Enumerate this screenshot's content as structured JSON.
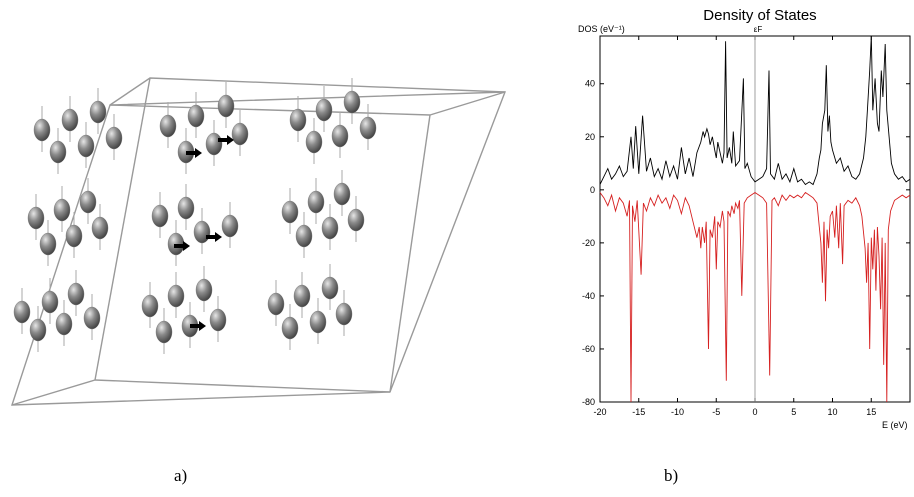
{
  "captions": {
    "a": "a)",
    "b": "b)"
  },
  "structure": {
    "atom_color": "#6f6f6f",
    "arrow_color": "#000000",
    "cell_color": "#9a9a9a"
  },
  "chart_data": {
    "type": "line",
    "title": "Density of States",
    "ylabel": "DOS (eV⁻¹)",
    "xlabel": "E (eV)",
    "fermi_label": "εF",
    "xlim": [
      -20,
      20
    ],
    "ylim": [
      -80,
      58
    ],
    "xticks": [
      -20,
      -15,
      -10,
      -5,
      0,
      5,
      10,
      15
    ],
    "yticks": [
      -80,
      -60,
      -40,
      -20,
      0,
      20,
      40
    ],
    "fermi_energy": 0,
    "series": [
      {
        "name": "",
        "color": "#000000",
        "points": [
          [
            -20,
            2
          ],
          [
            -19.5,
            5
          ],
          [
            -19,
            8
          ],
          [
            -18.5,
            4
          ],
          [
            -18,
            6
          ],
          [
            -17.5,
            9
          ],
          [
            -17,
            5
          ],
          [
            -16.5,
            7
          ],
          [
            -16,
            20
          ],
          [
            -15.7,
            8
          ],
          [
            -15.4,
            24
          ],
          [
            -15,
            6
          ],
          [
            -14.5,
            28
          ],
          [
            -14,
            7
          ],
          [
            -13.5,
            12
          ],
          [
            -13,
            5
          ],
          [
            -12.5,
            8
          ],
          [
            -12,
            4
          ],
          [
            -11.5,
            11
          ],
          [
            -11,
            5
          ],
          [
            -10.5,
            9
          ],
          [
            -10,
            4
          ],
          [
            -9.5,
            16
          ],
          [
            -9,
            6
          ],
          [
            -8.5,
            12
          ],
          [
            -8,
            5
          ],
          [
            -7.5,
            14
          ],
          [
            -7,
            18
          ],
          [
            -6.7,
            22
          ],
          [
            -6.5,
            20
          ],
          [
            -6.2,
            23
          ],
          [
            -6,
            21
          ],
          [
            -5.8,
            17
          ],
          [
            -5.5,
            20
          ],
          [
            -5.2,
            15
          ],
          [
            -5,
            12
          ],
          [
            -4.8,
            18
          ],
          [
            -4.5,
            14
          ],
          [
            -4.2,
            10
          ],
          [
            -4,
            14
          ],
          [
            -3.8,
            56
          ],
          [
            -3.6,
            12
          ],
          [
            -3.3,
            16
          ],
          [
            -3,
            10
          ],
          [
            -2.8,
            22
          ],
          [
            -2.5,
            9
          ],
          [
            -2,
            11
          ],
          [
            -1.5,
            42
          ],
          [
            -1.3,
            8
          ],
          [
            -1,
            10
          ],
          [
            -0.5,
            5
          ],
          [
            0,
            3
          ],
          [
            0.5,
            4
          ],
          [
            1,
            5
          ],
          [
            1.5,
            8
          ],
          [
            1.8,
            45
          ],
          [
            2,
            6
          ],
          [
            2.5,
            4
          ],
          [
            3,
            10
          ],
          [
            3.5,
            4
          ],
          [
            4,
            6
          ],
          [
            4.5,
            3
          ],
          [
            5,
            8
          ],
          [
            5.5,
            3
          ],
          [
            6,
            4
          ],
          [
            6.5,
            2
          ],
          [
            7,
            3
          ],
          [
            7.5,
            2
          ],
          [
            8,
            6
          ],
          [
            8.3,
            12
          ],
          [
            8.5,
            15
          ],
          [
            8.7,
            25
          ],
          [
            9,
            30
          ],
          [
            9.2,
            47
          ],
          [
            9.4,
            22
          ],
          [
            9.6,
            28
          ],
          [
            9.8,
            18
          ],
          [
            10,
            15
          ],
          [
            10.5,
            10
          ],
          [
            11,
            12
          ],
          [
            11.5,
            7
          ],
          [
            12,
            9
          ],
          [
            12.5,
            5
          ],
          [
            13,
            4
          ],
          [
            13.5,
            6
          ],
          [
            14,
            12
          ],
          [
            14.3,
            20
          ],
          [
            14.5,
            30
          ],
          [
            14.8,
            45
          ],
          [
            15,
            58
          ],
          [
            15.2,
            30
          ],
          [
            15.5,
            42
          ],
          [
            15.8,
            25
          ],
          [
            16,
            22
          ],
          [
            16.3,
            45
          ],
          [
            16.5,
            35
          ],
          [
            16.8,
            55
          ],
          [
            17,
            30
          ],
          [
            17.3,
            20
          ],
          [
            17.6,
            10
          ],
          [
            18,
            6
          ],
          [
            18.5,
            4
          ],
          [
            19,
            5
          ],
          [
            19.5,
            3
          ],
          [
            20,
            4
          ]
        ]
      },
      {
        "name": "",
        "color": "#d62020",
        "points": [
          [
            -20,
            -1
          ],
          [
            -19.5,
            -3
          ],
          [
            -19,
            -6
          ],
          [
            -18.5,
            -2
          ],
          [
            -18,
            -8
          ],
          [
            -17.5,
            -3
          ],
          [
            -17,
            -5
          ],
          [
            -16.5,
            -10
          ],
          [
            -16.2,
            -4
          ],
          [
            -16,
            -80
          ],
          [
            -15.8,
            -6
          ],
          [
            -15.5,
            -12
          ],
          [
            -15.2,
            -4
          ],
          [
            -14.7,
            -32
          ],
          [
            -14.4,
            -5
          ],
          [
            -14,
            -8
          ],
          [
            -13.5,
            -3
          ],
          [
            -13,
            -6
          ],
          [
            -12.5,
            -2
          ],
          [
            -12,
            -5
          ],
          [
            -11.5,
            -3
          ],
          [
            -11,
            -7
          ],
          [
            -10.5,
            -2
          ],
          [
            -10,
            -4
          ],
          [
            -9.5,
            -9
          ],
          [
            -9,
            -3
          ],
          [
            -8.5,
            -6
          ],
          [
            -8,
            -12
          ],
          [
            -7.5,
            -18
          ],
          [
            -7.2,
            -14
          ],
          [
            -7,
            -22
          ],
          [
            -6.8,
            -14
          ],
          [
            -6.5,
            -20
          ],
          [
            -6.3,
            -12
          ],
          [
            -6,
            -60
          ],
          [
            -5.8,
            -15
          ],
          [
            -5.5,
            -18
          ],
          [
            -5.2,
            -10
          ],
          [
            -5,
            -30
          ],
          [
            -4.8,
            -12
          ],
          [
            -4.5,
            -14
          ],
          [
            -4.2,
            -8
          ],
          [
            -4,
            -12
          ],
          [
            -3.7,
            -72
          ],
          [
            -3.5,
            -8
          ],
          [
            -3.2,
            -10
          ],
          [
            -3,
            -6
          ],
          [
            -2.7,
            -9
          ],
          [
            -2.5,
            -5
          ],
          [
            -2.2,
            -7
          ],
          [
            -2,
            -4
          ],
          [
            -1.7,
            -40
          ],
          [
            -1.4,
            -5
          ],
          [
            -1,
            -3
          ],
          [
            -0.5,
            -2
          ],
          [
            0,
            -1
          ],
          [
            0.5,
            -2
          ],
          [
            1,
            -3
          ],
          [
            1.5,
            -5
          ],
          [
            1.9,
            -70
          ],
          [
            2.2,
            -4
          ],
          [
            2.5,
            -3
          ],
          [
            3,
            -6
          ],
          [
            3.5,
            -2
          ],
          [
            4,
            -4
          ],
          [
            4.5,
            -2
          ],
          [
            5,
            -3
          ],
          [
            5.5,
            -2
          ],
          [
            6,
            -3
          ],
          [
            6.5,
            -1
          ],
          [
            7,
            -2
          ],
          [
            7.5,
            -3
          ],
          [
            8,
            -5
          ],
          [
            8.3,
            -14
          ],
          [
            8.5,
            -20
          ],
          [
            8.7,
            -35
          ],
          [
            8.9,
            -12
          ],
          [
            9.1,
            -42
          ],
          [
            9.3,
            -15
          ],
          [
            9.5,
            -22
          ],
          [
            9.7,
            -10
          ],
          [
            10,
            -8
          ],
          [
            10.3,
            -18
          ],
          [
            10.5,
            -6
          ],
          [
            10.8,
            -22
          ],
          [
            11,
            -5
          ],
          [
            11.3,
            -28
          ],
          [
            11.5,
            -6
          ],
          [
            12,
            -4
          ],
          [
            12.5,
            -5
          ],
          [
            13,
            -3
          ],
          [
            13.5,
            -6
          ],
          [
            13.8,
            -10
          ],
          [
            14,
            -16
          ],
          [
            14.2,
            -22
          ],
          [
            14.4,
            -35
          ],
          [
            14.6,
            -20
          ],
          [
            14.8,
            -60
          ],
          [
            15,
            -18
          ],
          [
            15.2,
            -30
          ],
          [
            15.4,
            -15
          ],
          [
            15.6,
            -38
          ],
          [
            15.8,
            -14
          ],
          [
            16,
            -25
          ],
          [
            16.2,
            -45
          ],
          [
            16.4,
            -18
          ],
          [
            16.6,
            -66
          ],
          [
            16.8,
            -20
          ],
          [
            17,
            -80
          ],
          [
            17.2,
            -15
          ],
          [
            17.5,
            -8
          ],
          [
            18,
            -4
          ],
          [
            18.5,
            -3
          ],
          [
            19,
            -2
          ],
          [
            19.5,
            -3
          ],
          [
            20,
            -2
          ]
        ]
      }
    ]
  }
}
